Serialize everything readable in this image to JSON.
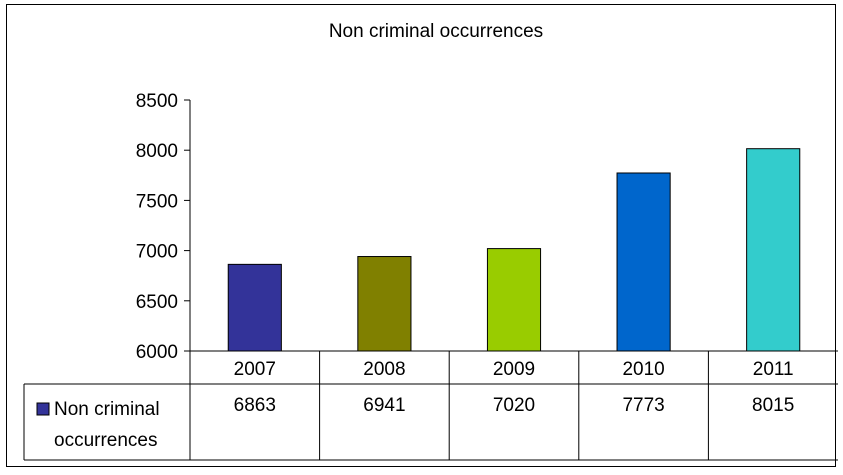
{
  "chart_data": {
    "type": "bar",
    "title": "Non criminal occurrences",
    "categories": [
      "2007",
      "2008",
      "2009",
      "2010",
      "2011"
    ],
    "series": [
      {
        "name": "Non criminal occurrences",
        "legend_lines": [
          "Non criminal",
          "occurrences"
        ],
        "values": [
          6863,
          6941,
          7020,
          7773,
          8015
        ],
        "colors": [
          "#333399",
          "#808000",
          "#99cc00",
          "#0066cc",
          "#33cccc"
        ],
        "legend_color": "#333399"
      }
    ],
    "y_ticks": [
      "6000",
      "6500",
      "7000",
      "7500",
      "8000",
      "8500"
    ],
    "ylim": [
      6000,
      8500
    ],
    "grid": false,
    "legend_placement": "data-table"
  }
}
